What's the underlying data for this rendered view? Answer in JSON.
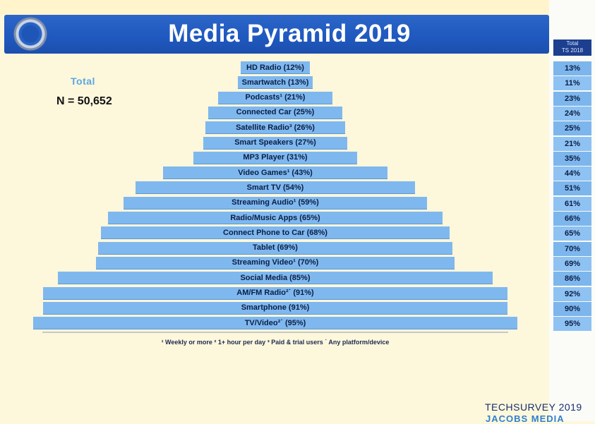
{
  "header": {
    "title": "Media Pyramid 2019"
  },
  "summary": {
    "total_label": "Total",
    "n_label": "N = 50,652"
  },
  "comparison_column": {
    "header_line1": "Total",
    "header_line2": "TS 2018",
    "values": [
      "13%",
      "11%",
      "23%",
      "24%",
      "25%",
      "21%",
      "35%",
      "44%",
      "51%",
      "61%",
      "66%",
      "65%",
      "70%",
      "69%",
      "86%",
      "92%",
      "90%",
      "95%"
    ]
  },
  "footnote": "¹ Weekly or more  ² 1+ hour per day  ³ Paid & trial users  ˙ Any platform/device",
  "branding": {
    "line1": "TECHSURVEY 2019",
    "line2": "JACOBS MEDIA"
  },
  "colors": {
    "title_bar": "#1f58be",
    "bar": "#7fb8ee",
    "background": "#fdf7dc",
    "total_label": "#5aa7df"
  },
  "chart_data": {
    "type": "bar",
    "orientation": "horizontal-centered",
    "title": "Media Pyramid 2019",
    "categories": [
      "HD Radio",
      "Smartwatch",
      "Podcasts¹",
      "Connected Car",
      "Satellite Radio³",
      "Smart Speakers",
      "MP3 Player",
      "Video Games¹",
      "Smart TV",
      "Streaming Audio¹",
      "Radio/Music Apps",
      "Connect Phone to Car",
      "Tablet",
      "Streaming Video¹",
      "Social Media",
      "AM/FM Radio²˙",
      "Smartphone",
      "TV/Video²˙"
    ],
    "labels": [
      "HD Radio (12%)",
      "Smartwatch (13%)",
      "Podcasts¹ (21%)",
      "Connected Car (25%)",
      "Satellite Radio³ (26%)",
      "Smart Speakers (27%)",
      "MP3 Player (31%)",
      "Video Games¹ (43%)",
      "Smart TV (54%)",
      "Streaming Audio¹ (59%)",
      "Radio/Music Apps (65%)",
      "Connect Phone to Car (68%)",
      "Tablet (69%)",
      "Streaming Video¹ (70%)",
      "Social Media (85%)",
      "AM/FM Radio²˙ (91%)",
      "Smartphone (91%)",
      "TV/Video²˙ (95%)"
    ],
    "values": [
      12,
      13,
      21,
      25,
      26,
      27,
      31,
      43,
      54,
      59,
      65,
      68,
      69,
      70,
      85,
      91,
      91,
      95
    ],
    "series": [
      {
        "values": [
          12,
          13,
          21,
          25,
          26,
          27,
          31,
          43,
          54,
          59,
          65,
          68,
          69,
          70,
          85,
          91,
          91,
          95
        ]
      }
    ],
    "comparison_values": [
      13,
      11,
      23,
      24,
      25,
      21,
      35,
      44,
      51,
      61,
      66,
      65,
      70,
      69,
      86,
      92,
      90,
      95
    ],
    "xlim": [
      0,
      100
    ],
    "grid": false,
    "legend": "none"
  }
}
